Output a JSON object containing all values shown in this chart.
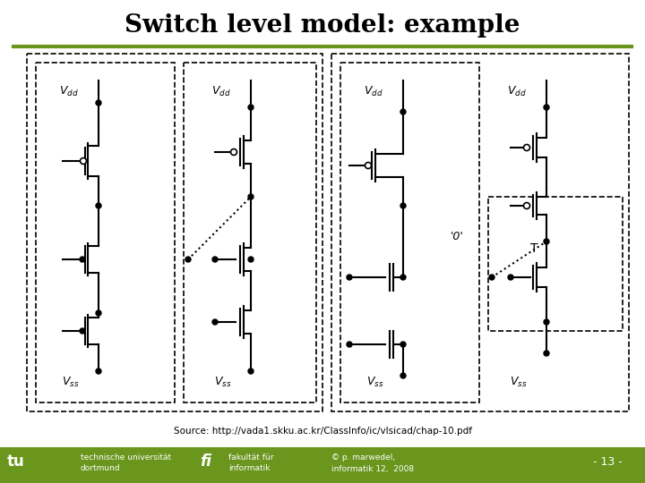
{
  "title": "Switch level model: example",
  "title_fontsize": 20,
  "title_fontweight": "bold",
  "bg_color": "#ffffff",
  "green_line_color": "#6a961e",
  "footer_bg_color": "#6a961e",
  "source_text": "Source: http://vada1.skku.ac.kr/ClassInfo/ic/vlsicad/chap-10.pdf",
  "footer_left1": "technische universität",
  "footer_left2": "dortmund",
  "footer_mid1": "fakultät für",
  "footer_mid2": "informatik",
  "footer_right1": "© p. marwedel,",
  "footer_right2": "informatik 12,  2008",
  "footer_page": "- 13 -",
  "dashed_box_color": "#000000",
  "line_color": "#000000"
}
